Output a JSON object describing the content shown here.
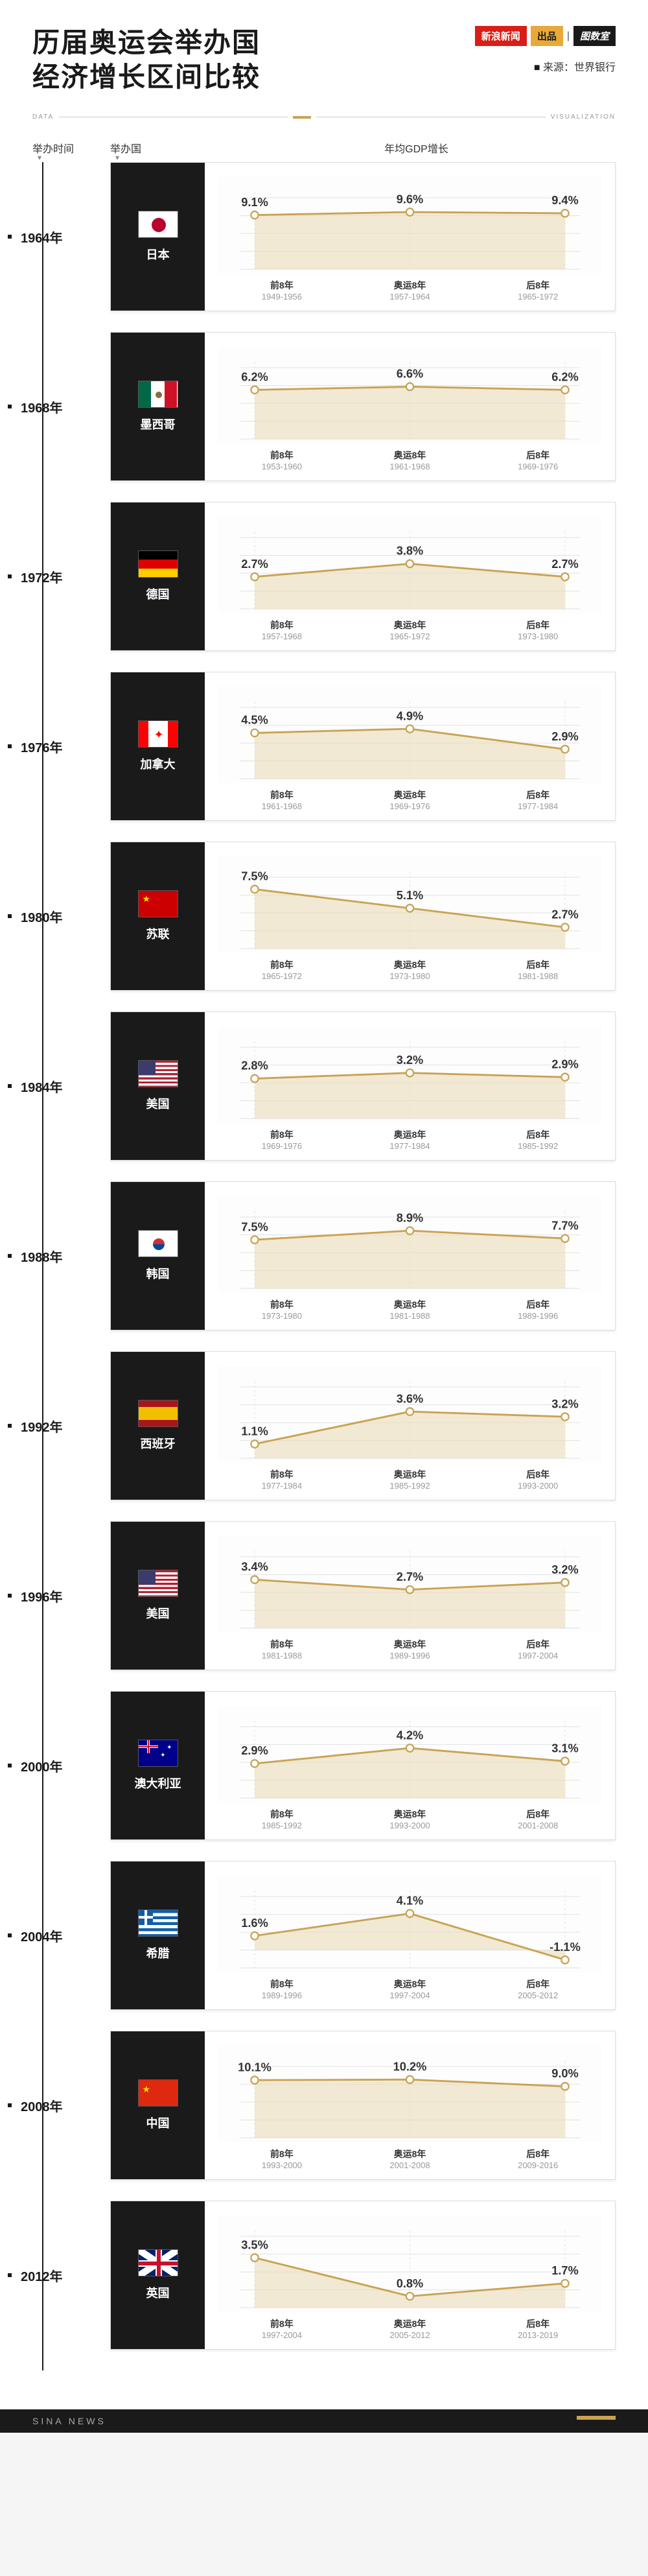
{
  "header": {
    "title_line1": "历届奥运会举办国",
    "title_line2": "经济增长区间比较",
    "source": "来源：世界银行",
    "badges": {
      "sina": "新浪新闻",
      "chupin": "出品",
      "tudushi": "图数室"
    },
    "rule_left": "DATA",
    "rule_right": "VISUALIZATION"
  },
  "columns": {
    "year": "举办时间",
    "country": "举办国",
    "gdp": "年均GDP增长"
  },
  "periods": {
    "before": "前8年",
    "during": "奥运8年",
    "after": "后8年"
  },
  "chart_style": {
    "line_color": "#c9a353",
    "fill_color": "#eadcb8",
    "fill_opacity": 0.6,
    "grid_color": "#e5e5e5",
    "bg_color": "#fdfdfd",
    "point_outer": "#c9a353",
    "point_inner": "#ffffff",
    "value_color": "#333333",
    "value_fontsize": 16,
    "y_max_ratio": 1.15
  },
  "rows": [
    {
      "year": "1964年",
      "country": "日本",
      "flag": "japan",
      "values": [
        9.1,
        9.6,
        9.4
      ],
      "value_labels": [
        "9.1%",
        "9.6%",
        "9.4%"
      ],
      "ranges": [
        "1949-1956",
        "1957-1964",
        "1965-1972"
      ],
      "y_max": 12
    },
    {
      "year": "1968年",
      "country": "墨西哥",
      "flag": "mexico",
      "values": [
        6.2,
        6.6,
        6.2
      ],
      "value_labels": [
        "6.2%",
        "6.6%",
        "6.2%"
      ],
      "ranges": [
        "1953-1960",
        "1961-1968",
        "1969-1976"
      ],
      "y_max": 9
    },
    {
      "year": "1972年",
      "country": "德国",
      "flag": "germany",
      "values": [
        2.7,
        3.8,
        2.7
      ],
      "value_labels": [
        "2.7%",
        "3.8%",
        "2.7%"
      ],
      "ranges": [
        "1957-1968",
        "1965-1972",
        "1973-1980"
      ],
      "y_max": 6
    },
    {
      "year": "1976年",
      "country": "加拿大",
      "flag": "canada",
      "values": [
        4.5,
        4.9,
        2.9
      ],
      "value_labels": [
        "4.5%",
        "4.9%",
        "2.9%"
      ],
      "ranges": [
        "1961-1968",
        "1969-1976",
        "1977-1984"
      ],
      "y_max": 7
    },
    {
      "year": "1980年",
      "country": "苏联",
      "flag": "ussr",
      "values": [
        7.5,
        5.1,
        2.7
      ],
      "value_labels": [
        "7.5%",
        "5.1%",
        "2.7%"
      ],
      "ranges": [
        "1965-1972",
        "1973-1980",
        "1981-1988"
      ],
      "y_max": 9
    },
    {
      "year": "1984年",
      "country": "美国",
      "flag": "usa",
      "values": [
        2.8,
        3.2,
        2.9
      ],
      "value_labels": [
        "2.8%",
        "3.2%",
        "2.9%"
      ],
      "ranges": [
        "1969-1976",
        "1977-1984",
        "1985-1992"
      ],
      "y_max": 5
    },
    {
      "year": "1988年",
      "country": "韩国",
      "flag": "korea",
      "values": [
        7.5,
        8.9,
        7.7
      ],
      "value_labels": [
        "7.5%",
        "8.9%",
        "7.7%"
      ],
      "ranges": [
        "1973-1980",
        "1981-1988",
        "1989-1996"
      ],
      "y_max": 11
    },
    {
      "year": "1992年",
      "country": "西班牙",
      "flag": "spain",
      "values": [
        1.1,
        3.6,
        3.2
      ],
      "value_labels": [
        "1.1%",
        "3.6%",
        "3.2%"
      ],
      "ranges": [
        "1977-1984",
        "1985-1992",
        "1993-2000"
      ],
      "y_max": 5.5
    },
    {
      "year": "1996年",
      "country": "美国",
      "flag": "usa",
      "values": [
        3.4,
        2.7,
        3.2
      ],
      "value_labels": [
        "3.4%",
        "2.7%",
        "3.2%"
      ],
      "ranges": [
        "1981-1988",
        "1989-1996",
        "1997-2004"
      ],
      "y_max": 5
    },
    {
      "year": "2000年",
      "country": "澳大利亚",
      "flag": "australia",
      "values": [
        2.9,
        4.2,
        3.1
      ],
      "value_labels": [
        "2.9%",
        "4.2%",
        "3.1%"
      ],
      "ranges": [
        "1985-1992",
        "1993-2000",
        "2001-2008"
      ],
      "y_max": 6
    },
    {
      "year": "2004年",
      "country": "希腊",
      "flag": "greece",
      "values": [
        1.6,
        4.1,
        -1.1
      ],
      "value_labels": [
        "1.6%",
        "4.1%",
        "-1.1%"
      ],
      "ranges": [
        "1989-1996",
        "1997-2004",
        "2005-2012"
      ],
      "y_max": 6,
      "y_min": -2
    },
    {
      "year": "2008年",
      "country": "中国",
      "flag": "china",
      "values": [
        10.1,
        10.2,
        9.0
      ],
      "value_labels": [
        "10.1%",
        "10.2%",
        "9.0%"
      ],
      "ranges": [
        "1993-2000",
        "2001-2008",
        "2009-2016"
      ],
      "y_max": 12.5
    },
    {
      "year": "2012年",
      "country": "英国",
      "flag": "uk",
      "values": [
        3.5,
        0.8,
        1.7
      ],
      "value_labels": [
        "3.5%",
        "0.8%",
        "1.7%"
      ],
      "ranges": [
        "1997-2004",
        "2005-2012",
        "2013-2019"
      ],
      "y_max": 5
    }
  ],
  "footer": {
    "text": "SINA NEWS"
  }
}
